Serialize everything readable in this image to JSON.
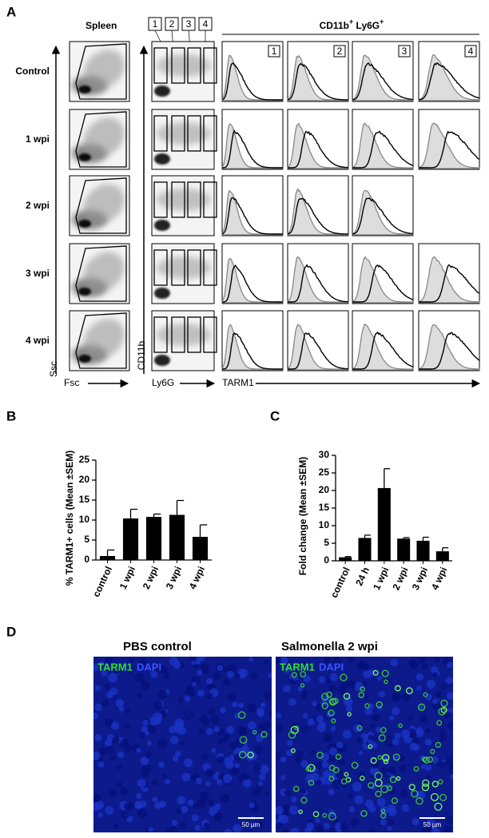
{
  "panels": {
    "a": "A",
    "b": "B",
    "c": "C",
    "d": "D"
  },
  "flow": {
    "gate_title": "Spleen",
    "rows": [
      "Control",
      "1 wpi",
      "2 wpi",
      "3 wpi",
      "4 wpi"
    ],
    "gates": [
      "1",
      "2",
      "3",
      "4"
    ],
    "header": [
      "CD11b",
      "+",
      " Ly6G",
      "+"
    ],
    "axes": {
      "ssc": "Ssc",
      "fsc": "Fsc",
      "cd11b": "CD11b",
      "ly6g": "Ly6G",
      "tarm1": "TARM1"
    }
  },
  "chart_data": [
    {
      "type": "bar",
      "ylabel": "% TARM1+ cells (Mean ±SEM)",
      "categories": [
        "control",
        "1 wpi",
        "2 wpi",
        "3 wpi",
        "4 wpi"
      ],
      "values": [
        1.0,
        10.4,
        10.8,
        11.3,
        5.8
      ],
      "errors": [
        1.5,
        2.3,
        0.7,
        3.6,
        3.0
      ],
      "color": "#000000",
      "ylim": [
        0,
        25
      ],
      "yticks": [
        0,
        5,
        10,
        15,
        20,
        25
      ]
    },
    {
      "type": "bar",
      "ylabel": "Fold change (Mean ±SEM)",
      "categories": [
        "control",
        "24 h",
        "1 wpi",
        "2 wpi",
        "3 wpi",
        "4 wpi"
      ],
      "values": [
        1.0,
        6.5,
        20.7,
        6.3,
        5.7,
        2.7
      ],
      "errors": [
        0.2,
        0.8,
        5.5,
        0.3,
        1.0,
        1.0
      ],
      "color": "#000000",
      "ylim": [
        0,
        30
      ],
      "yticks": [
        0,
        5,
        10,
        15,
        20,
        25,
        30
      ]
    }
  ],
  "images": [
    {
      "title": "PBS control",
      "stain1": "TARM1",
      "stain2": "DAPI",
      "scale": "50 µm"
    },
    {
      "title": "Salmonella 2 wpi",
      "stain1": "TARM1",
      "stain2": "DAPI",
      "scale": "50 µm"
    }
  ]
}
